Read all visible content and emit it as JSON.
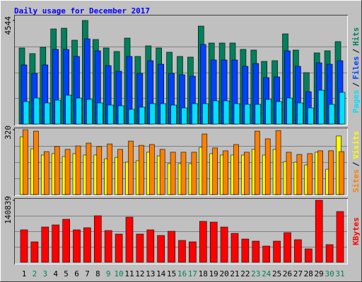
{
  "chart_data": [
    {
      "type": "bar",
      "title": "Daily usage for December 2017",
      "ylim": [
        0,
        4544
      ],
      "yticks": [
        4544
      ],
      "legend_separator": "/",
      "series": [
        {
          "name": "Hits",
          "color": "#00805c",
          "values": [
            3338,
            3091,
            3369,
            4173,
            4204,
            3679,
            4544,
            3709,
            3338,
            3184,
            3771,
            2967,
            3431,
            3338,
            3153,
            2967,
            2937,
            4297,
            3555,
            3555,
            3555,
            3277,
            3246,
            2751,
            2782,
            3957,
            3246,
            2257,
            3122,
            3215,
            3617
          ]
        },
        {
          "name": "Files",
          "color": "#0040ff",
          "values": [
            2596,
            2225,
            2596,
            3275,
            3275,
            2966,
            3739,
            3214,
            2565,
            2318,
            2966,
            2225,
            2781,
            2627,
            2225,
            2163,
            2101,
            3492,
            2812,
            2812,
            2812,
            2534,
            2657,
            2039,
            2070,
            3214,
            2534,
            1421,
            2688,
            2627,
            2781
          ]
        },
        {
          "name": "Pages",
          "color": "#00e0ff",
          "values": [
            989,
            1143,
            927,
            1051,
            1267,
            1143,
            1082,
            927,
            834,
            803,
            649,
            742,
            896,
            896,
            834,
            711,
            896,
            896,
            1020,
            1020,
            896,
            865,
            865,
            1082,
            989,
            1143,
            927,
            711,
            1483,
            865,
            1391
          ]
        }
      ]
    },
    {
      "type": "bar",
      "ylim": [
        0,
        320
      ],
      "yticks": [
        320
      ],
      "legend_separator": "/",
      "series": [
        {
          "name": "Visits",
          "color": "#ffff00",
          "values": [
            285,
            226,
            195,
            202,
            188,
            202,
            195,
            195,
            177,
            184,
            160,
            167,
            209,
            191,
            153,
            153,
            153,
            233,
            202,
            195,
            195,
            195,
            223,
            195,
            223,
            163,
            160,
            146,
            209,
            125,
            289
          ]
        },
        {
          "name": "Sites",
          "color": "#ff8000",
          "values": [
            320,
            313,
            212,
            237,
            223,
            240,
            254,
            237,
            250,
            223,
            264,
            243,
            247,
            223,
            209,
            209,
            209,
            299,
            230,
            216,
            247,
            209,
            313,
            275,
            316,
            209,
            198,
            202,
            216,
            216,
            212
          ]
        }
      ]
    },
    {
      "type": "bar",
      "ylim": [
        0,
        140839
      ],
      "yticks": [
        140839
      ],
      "series": [
        {
          "name": "KBytes",
          "color": "#ff0000",
          "values": [
            73600,
            46400,
            80000,
            84800,
            97600,
            73600,
            78400,
            105600,
            72000,
            64000,
            102400,
            64000,
            73600,
            60800,
            70400,
            49600,
            46400,
            92800,
            91200,
            80000,
            65600,
            52800,
            48000,
            36800,
            48000,
            67200,
            51200,
            30400,
            140839,
            40000,
            115200
          ]
        }
      ],
      "categories": [
        "1",
        "2",
        "3",
        "4",
        "5",
        "6",
        "7",
        "8",
        "9",
        "10",
        "11",
        "12",
        "13",
        "14",
        "15",
        "16",
        "17",
        "18",
        "19",
        "20",
        "21",
        "22",
        "23",
        "24",
        "25",
        "26",
        "27",
        "28",
        "29",
        "30",
        "31"
      ],
      "category_colors": [
        "#000000",
        "#00805c",
        "#00805c",
        "#000000",
        "#000000",
        "#000000",
        "#000000",
        "#000000",
        "#00805c",
        "#00805c",
        "#000000",
        "#000000",
        "#000000",
        "#000000",
        "#000000",
        "#00805c",
        "#00805c",
        "#000000",
        "#000000",
        "#000000",
        "#000000",
        "#000000",
        "#00805c",
        "#00805c",
        "#000000",
        "#000000",
        "#000000",
        "#000000",
        "#000000",
        "#00805c",
        "#00805c"
      ]
    }
  ]
}
